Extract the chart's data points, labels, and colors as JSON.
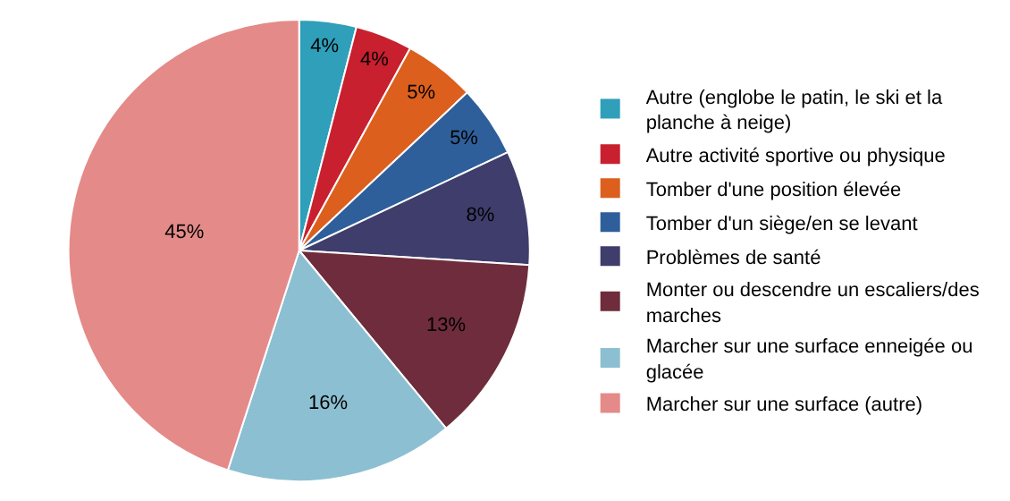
{
  "chart_data": {
    "type": "pie",
    "categories": [
      "Autre (englobe le patin, le ski et la planche à neige)",
      "Autre activité sportive ou physique",
      "Tomber d'une position élevée",
      "Tomber d'un siège/en se levant",
      "Problèmes de santé",
      "Monter ou descendre un escaliers/des marches",
      "Marcher sur une surface enneigée ou glacée",
      "Marcher sur une surface (autre)"
    ],
    "values": [
      4,
      4,
      5,
      5,
      8,
      13,
      16,
      45
    ],
    "value_labels": [
      "4%",
      "4%",
      "5%",
      "5%",
      "8%",
      "13%",
      "16%",
      "45%"
    ],
    "colors": [
      "#2f9fba",
      "#c8202f",
      "#dc5f1e",
      "#2f5f9a",
      "#3e3d6b",
      "#6e2c3c",
      "#8cbfd1",
      "#e48a89"
    ],
    "legend": "right"
  }
}
